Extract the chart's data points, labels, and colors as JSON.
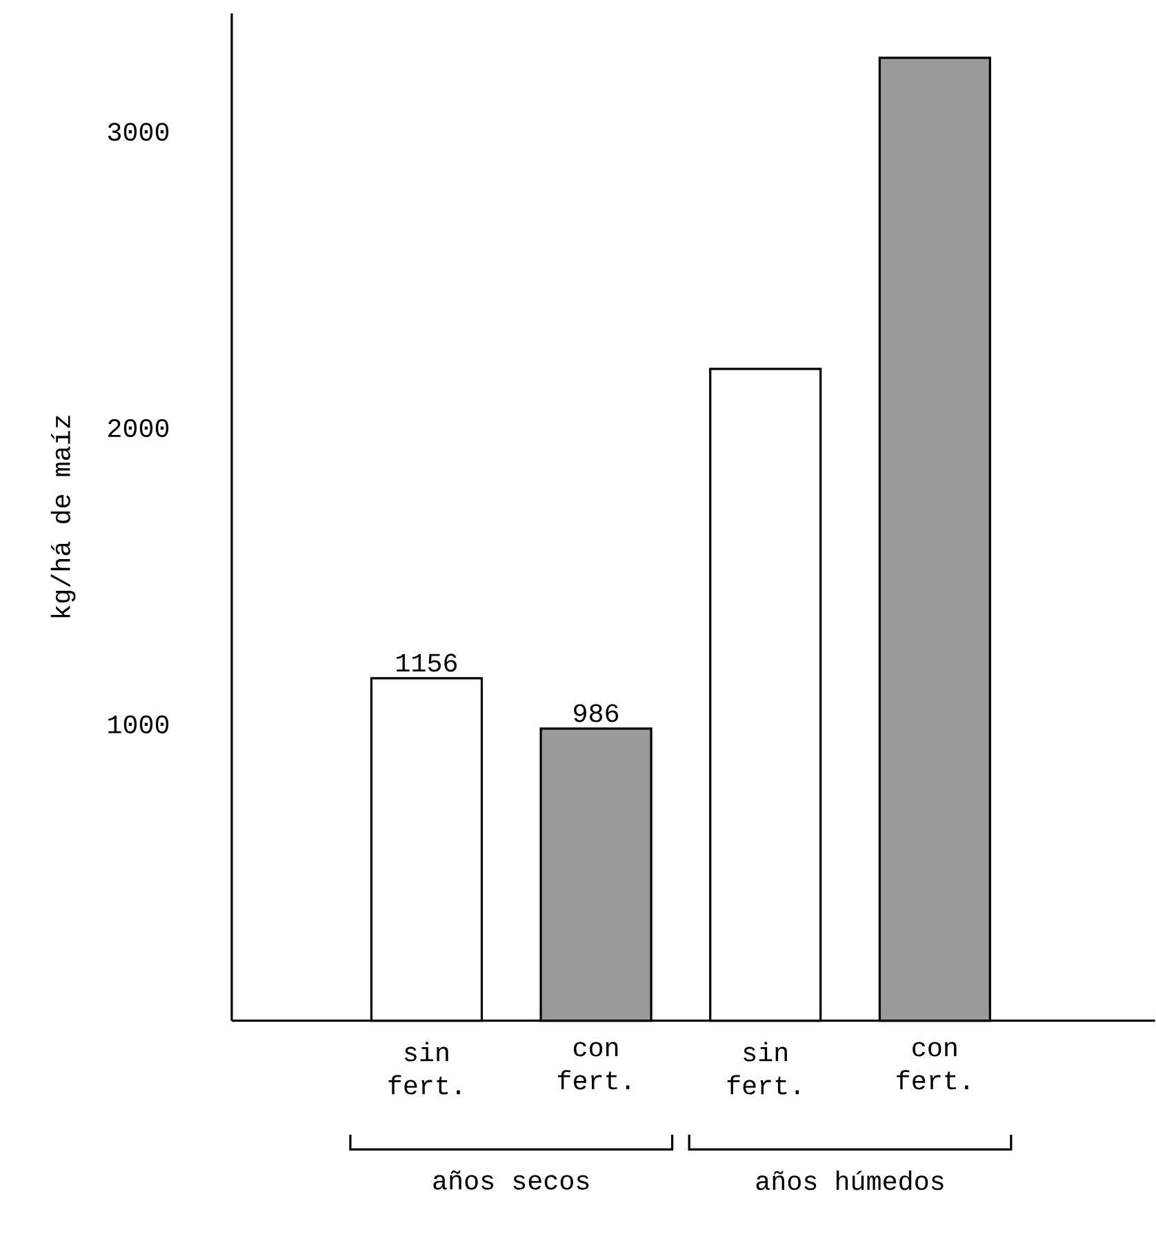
{
  "chart_data": {
    "type": "bar",
    "ylabel": "kg/há de maíz",
    "categories": [
      "sin fert.",
      "con fert.",
      "sin fert.",
      "con fert."
    ],
    "series": [
      {
        "color": "#ffffff",
        "values": [
          1156,
          null,
          2200,
          null
        ]
      },
      {
        "color": "#9a9a9a",
        "values": [
          null,
          986,
          null,
          3250
        ]
      }
    ],
    "value_labels": [
      "1156",
      "986",
      null,
      null
    ],
    "ylim": [
      0,
      3400
    ],
    "yticks": [
      1000,
      2000,
      3000
    ],
    "annotations": [
      "años secos",
      "años húmedos"
    ],
    "grid": false
  }
}
